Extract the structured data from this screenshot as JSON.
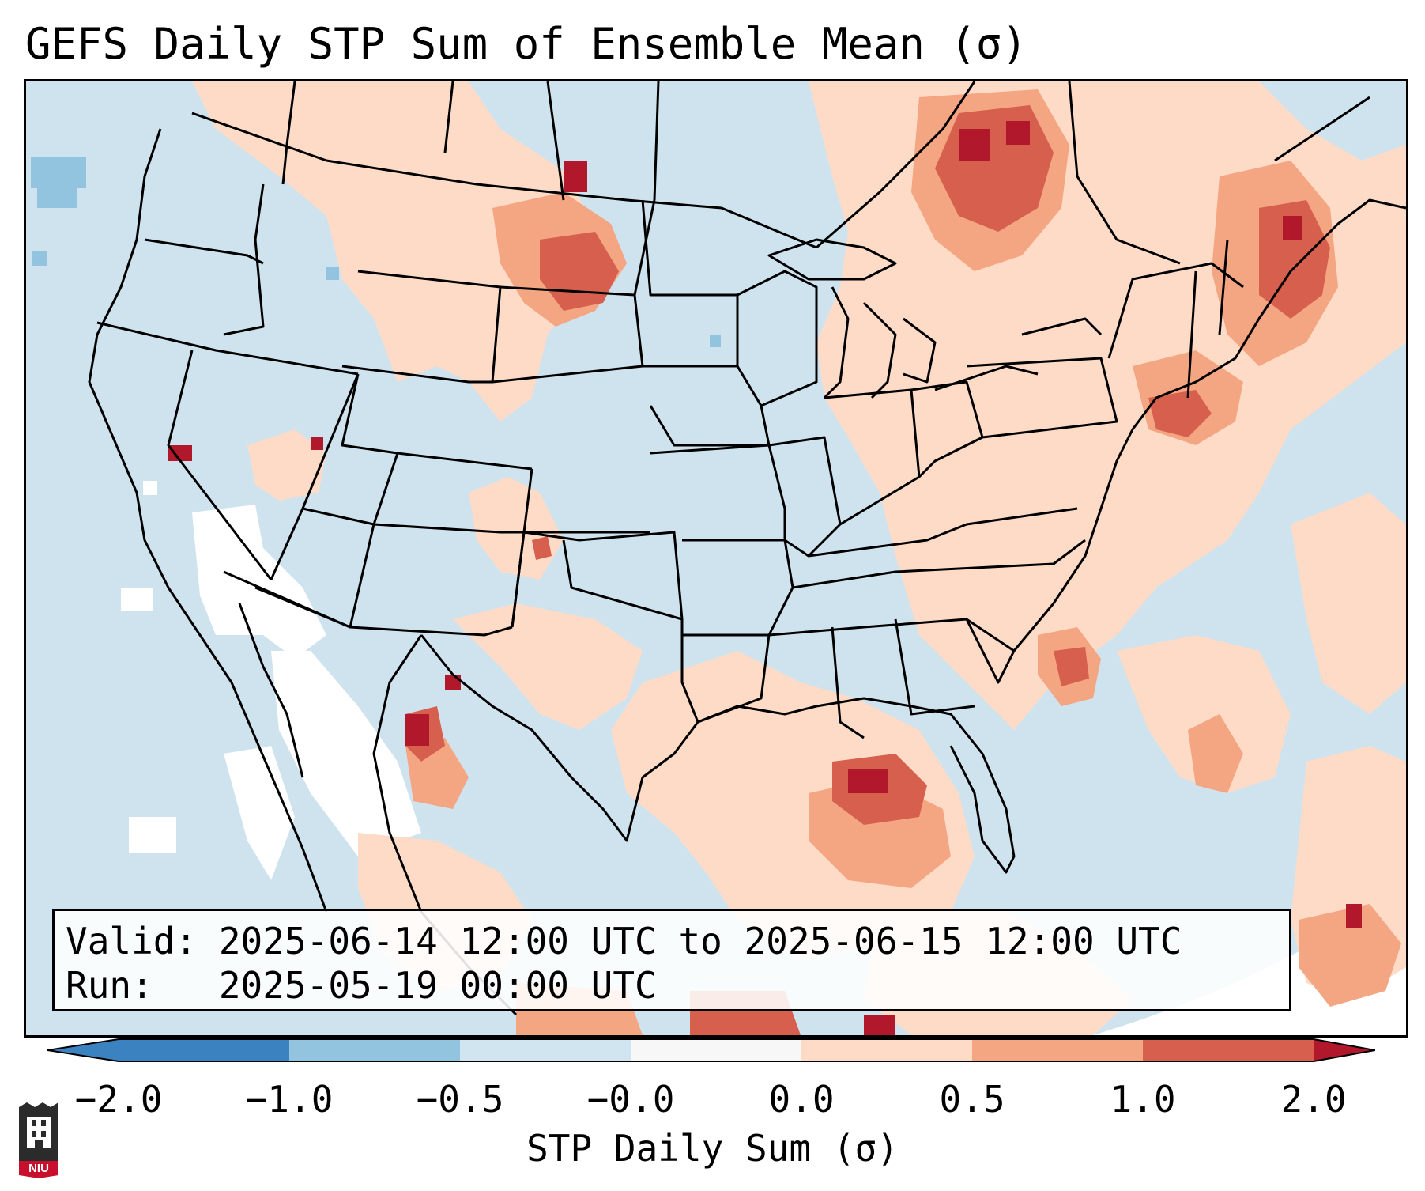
{
  "title": "GEFS Daily STP Sum of Ensemble Mean (σ)",
  "valid_line": "Valid: 2025-06-14 12:00 UTC to 2025-06-15 12:00 UTC",
  "run_line": "Run:   2025-05-19 00:00 UTC",
  "colorbar": {
    "label": "STP Daily Sum (σ)",
    "ticks": [
      "−2.0",
      "−1.0",
      "−0.5",
      "−0.0",
      "0.0",
      "0.5",
      "1.0",
      "2.0"
    ],
    "colors": [
      "#3a82c0",
      "#93c4df",
      "#d1e5f0",
      "#f7f7f7",
      "#fddbc7",
      "#f4a582",
      "#d6604d",
      "#b2182b"
    ],
    "extend": "both"
  },
  "logo": {
    "text": "NIU"
  },
  "colors": {
    "ocean_background": "#cfe3ef",
    "neg_light": "#93c4df",
    "white_band": "#ffffff",
    "pos_light": "#fddbc7",
    "pos_med": "#f4a582",
    "pos_strong": "#d6604d",
    "pos_max": "#b2182b",
    "borders": "#000000"
  }
}
